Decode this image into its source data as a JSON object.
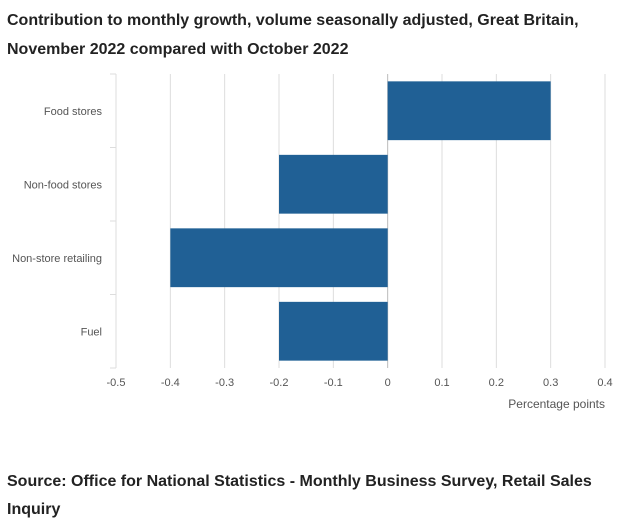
{
  "title": "Contribution to monthly growth, volume seasonally adjusted, Great Britain, November 2022 compared with October 2022",
  "source": "Source: Office for National Statistics - Monthly Business Survey, Retail Sales Inquiry",
  "colors": {
    "bar": "#206095",
    "grid": "#dddddd",
    "axis": "#bbbbbb",
    "text": "#555555"
  },
  "chart_data": {
    "type": "bar",
    "orientation": "horizontal",
    "categories": [
      "Food stores",
      "Non-food stores",
      "Non-store retailing",
      "Fuel"
    ],
    "values": [
      0.3,
      -0.2,
      -0.4,
      -0.2
    ],
    "xlabel": "Percentage points",
    "xlim": [
      -0.5,
      0.4
    ],
    "xticks": [
      "-0.5",
      "-0.4",
      "-0.3",
      "-0.2",
      "-0.1",
      "0",
      "0.1",
      "0.2",
      "0.3",
      "0.4"
    ],
    "grid": true
  }
}
